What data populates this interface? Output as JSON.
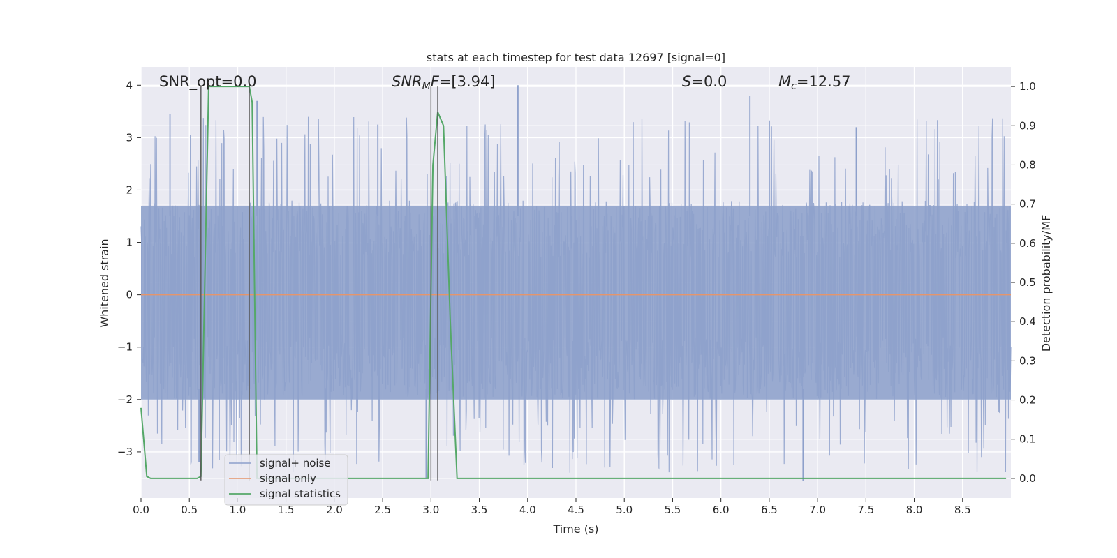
{
  "chart_data": {
    "type": "line",
    "title": "stats at each timestep for test data 12697 [signal=0]",
    "xlabel": "Time (s)",
    "ylabel_left": "Whitened strain",
    "ylabel_right": "Detection probability/MF",
    "xlim": [
      0.0,
      9.0
    ],
    "ylim_left": [
      -3.88,
      4.35
    ],
    "ylim_right": [
      -0.05,
      1.05
    ],
    "x_ticks": [
      "0.0",
      "0.5",
      "1.0",
      "1.5",
      "2.0",
      "2.5",
      "3.0",
      "3.5",
      "4.0",
      "4.5",
      "5.0",
      "5.5",
      "6.0",
      "6.5",
      "7.0",
      "7.5",
      "8.0",
      "8.5"
    ],
    "y_ticks_left": [
      "4",
      "3",
      "2",
      "1",
      "0",
      "−1",
      "−2",
      "−3"
    ],
    "y_ticks_right": [
      "1.0",
      "0.9",
      "0.8",
      "0.7",
      "0.6",
      "0.5",
      "0.4",
      "0.3",
      "0.2",
      "0.1",
      "0.0"
    ],
    "grid": true,
    "legend_position": "lower-left",
    "annotations": {
      "snr_opt": "SNR_opt=0.0",
      "snr_mf_name": "SNR",
      "snr_mf_sub": "M",
      "snr_mf_tail": "F",
      "snr_mf_value": "=[3.94]",
      "s_name": "S",
      "s_value": "=0.0",
      "mc_name": "M",
      "mc_sub": "c",
      "mc_value": "=12.57"
    },
    "vertical_lines_x": [
      0.62,
      1.12,
      3.0,
      3.07
    ],
    "series": [
      {
        "name": "signal+ noise",
        "axis": "left",
        "color": "#8da0cb",
        "description_values": "whitened noise, approximately uniform band spanning -2 to 1.7 with spikes up to 4.0 and down to -3.5",
        "spike_x": [
          0.3,
          0.6,
          1.2,
          2.45,
          2.95,
          3.9,
          6.3,
          6.85,
          7.4
        ],
        "spike_y": [
          3.45,
          -3.2,
          3.7,
          3.25,
          -3.5,
          4.0,
          3.8,
          -3.55,
          3.2
        ]
      },
      {
        "name": "signal only",
        "axis": "left",
        "color": "#e5956b",
        "x": [
          0.0,
          9.0
        ],
        "values": [
          0.0,
          0.0
        ]
      },
      {
        "name": "signal statistics",
        "axis": "right",
        "color": "#55a868",
        "x": [
          0.0,
          0.06,
          0.1,
          0.15,
          0.3,
          0.5,
          0.58,
          0.62,
          0.7,
          0.8,
          1.0,
          1.12,
          1.15,
          1.2,
          1.3,
          2.5,
          2.93,
          2.97,
          3.02,
          3.07,
          3.13,
          3.2,
          3.27,
          3.5,
          8.95
        ],
        "values": [
          0.18,
          0.005,
          0.0,
          0.0,
          0.0,
          0.0,
          0.0,
          0.005,
          1.0,
          1.0,
          1.0,
          1.0,
          0.96,
          0.0,
          0.0,
          0.0,
          0.0,
          0.0,
          0.8,
          0.935,
          0.9,
          0.4,
          0.0,
          0.0,
          0.0
        ]
      }
    ]
  },
  "legend": {
    "items": [
      "signal+ noise",
      "signal only",
      "signal statistics"
    ]
  }
}
